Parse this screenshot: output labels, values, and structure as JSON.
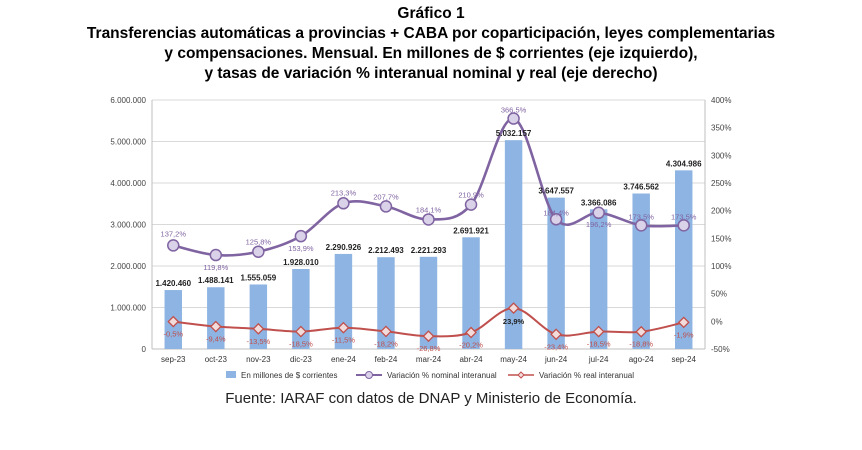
{
  "header": {
    "figure_label": "Gráfico 1",
    "title_lines": [
      "Transferencias automáticas a provincias + CABA por coparticipación, leyes complementarias",
      "y compensaciones. Mensual. En millones de $ corrientes (eje izquierdo),",
      "y tasas de variación % interanual nominal y real (eje derecho)"
    ]
  },
  "source": "Fuente: IARAF con datos de DNAP y Ministerio de Economía.",
  "colors": {
    "bar": "#8db4e2",
    "nominal": "#8064a2",
    "real": "#c0504d",
    "grid": "#d9d9d9"
  },
  "chart_data": {
    "type": "bar",
    "categories": [
      "sep-23",
      "oct-23",
      "nov-23",
      "dic-23",
      "ene-24",
      "feb-24",
      "mar-24",
      "abr-24",
      "may-24",
      "jun-24",
      "jul-24",
      "ago-24",
      "sep-24"
    ],
    "series": [
      {
        "name": "En millones de $ corrientes",
        "type": "bar",
        "axis": "left",
        "values": [
          1420460,
          1488141,
          1555059,
          1928010,
          2290926,
          2212493,
          2221293,
          2691921,
          5032157,
          3647557,
          3366086,
          3746562,
          4304986
        ],
        "labels": [
          "1.420.460",
          "1.488.141",
          "1.555.059",
          "1.928.010",
          "2.290.926",
          "2.212.493",
          "2.221.293",
          "2.691.921",
          "5.032.157",
          "3.647.557",
          "3.366.086",
          "3.746.562",
          "4.304.986"
        ]
      },
      {
        "name": "Variación % nominal interanual",
        "type": "line",
        "axis": "right",
        "values": [
          137.2,
          119.8,
          125.8,
          153.9,
          213.3,
          207.7,
          184.1,
          210.9,
          366.5,
          184.4,
          196.2,
          173.5,
          173.5
        ],
        "labels": [
          "137,2%",
          "119,8%",
          "125,8%",
          "153,9%",
          "213,3%",
          "207,7%",
          "184,1%",
          "210,9%",
          "366,5%",
          "184,4%",
          "196,2%",
          "173,5%",
          "173,5%"
        ]
      },
      {
        "name": "Variación % real interanual",
        "type": "line",
        "axis": "right",
        "values": [
          -0.5,
          -9.4,
          -13.5,
          -18.5,
          -11.5,
          -18.2,
          -26.8,
          -20.2,
          23.9,
          -23.4,
          -18.5,
          -18.8,
          -1.9
        ],
        "labels": [
          "-0,5%",
          "-9,4%",
          "-13,5%",
          "-18,5%",
          "-11,5%",
          "-18,2%",
          "-26,8%",
          "-20,2%",
          "23,9%",
          "-23,4%",
          "-18,5%",
          "-18,8%",
          "-1,9%"
        ]
      }
    ],
    "y_left": {
      "lim": [
        0,
        6000000
      ],
      "ticks": [
        0,
        1000000,
        2000000,
        3000000,
        4000000,
        5000000,
        6000000
      ],
      "tick_labels": [
        "0",
        "1.000.000",
        "2.000.000",
        "3.000.000",
        "4.000.000",
        "5.000.000",
        "6.000.000"
      ]
    },
    "y_right": {
      "lim": [
        -50,
        400
      ],
      "ticks": [
        -50,
        0,
        50,
        100,
        150,
        200,
        250,
        300,
        350,
        400
      ],
      "tick_labels": [
        "-50%",
        "0%",
        "50%",
        "100%",
        "150%",
        "200%",
        "250%",
        "300%",
        "350%",
        "400%"
      ]
    },
    "grid": true,
    "legend_position": "bottom"
  }
}
